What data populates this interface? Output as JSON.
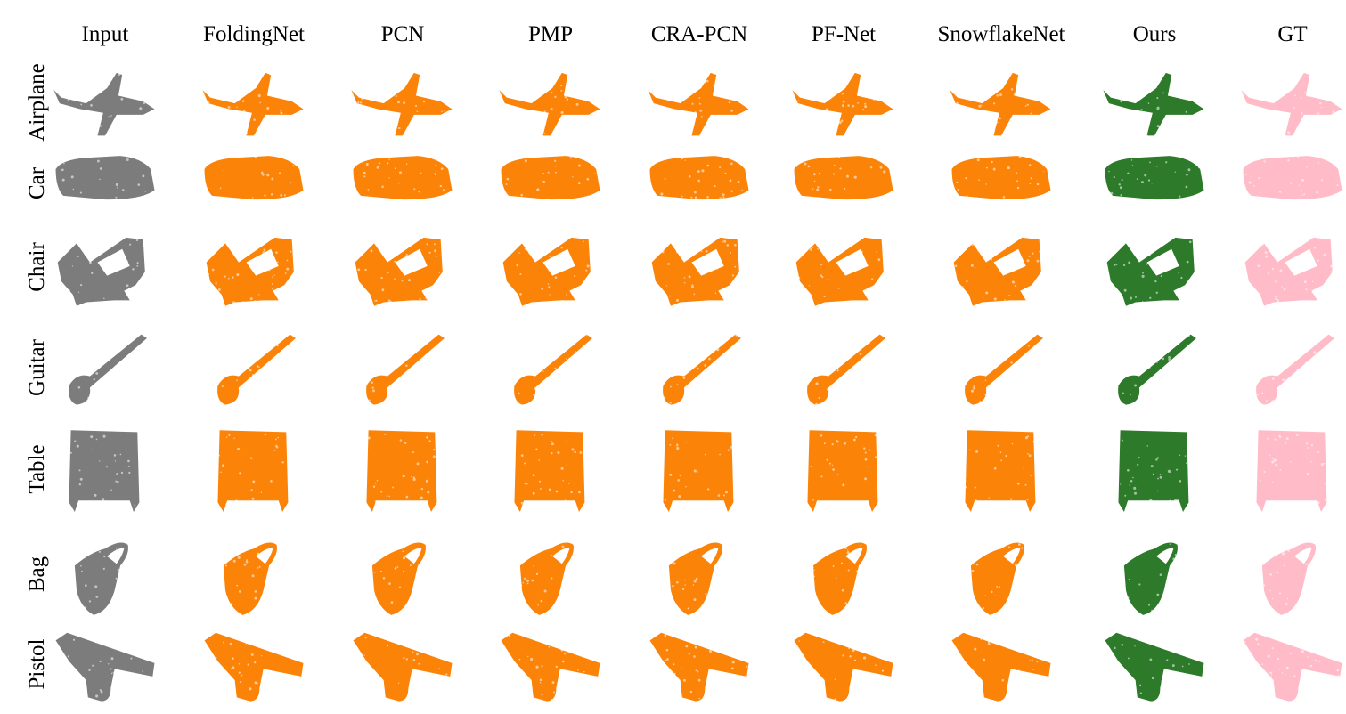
{
  "columns": [
    {
      "label": "Input",
      "color": "#7c7c7c"
    },
    {
      "label": "FoldingNet",
      "color": "#fb8308"
    },
    {
      "label": "PCN",
      "color": "#fb8308"
    },
    {
      "label": "PMP",
      "color": "#fb8308"
    },
    {
      "label": "CRA-PCN",
      "color": "#fb8308"
    },
    {
      "label": "PF-Net",
      "color": "#fb8308"
    },
    {
      "label": "SnowflakeNet",
      "color": "#fb8308"
    },
    {
      "label": "Ours",
      "color": "#2d7a2a"
    },
    {
      "label": "GT",
      "color": "#ffbcc8"
    }
  ],
  "rows": [
    {
      "label": "Airplane",
      "shape": "airplane-icon"
    },
    {
      "label": "Car",
      "shape": "car-icon"
    },
    {
      "label": "Chair",
      "shape": "chair-icon"
    },
    {
      "label": "Guitar",
      "shape": "guitar-icon"
    },
    {
      "label": "Table",
      "shape": "table-icon"
    },
    {
      "label": "Bag",
      "shape": "bag-icon"
    },
    {
      "label": "Pistol",
      "shape": "pistol-icon"
    }
  ]
}
